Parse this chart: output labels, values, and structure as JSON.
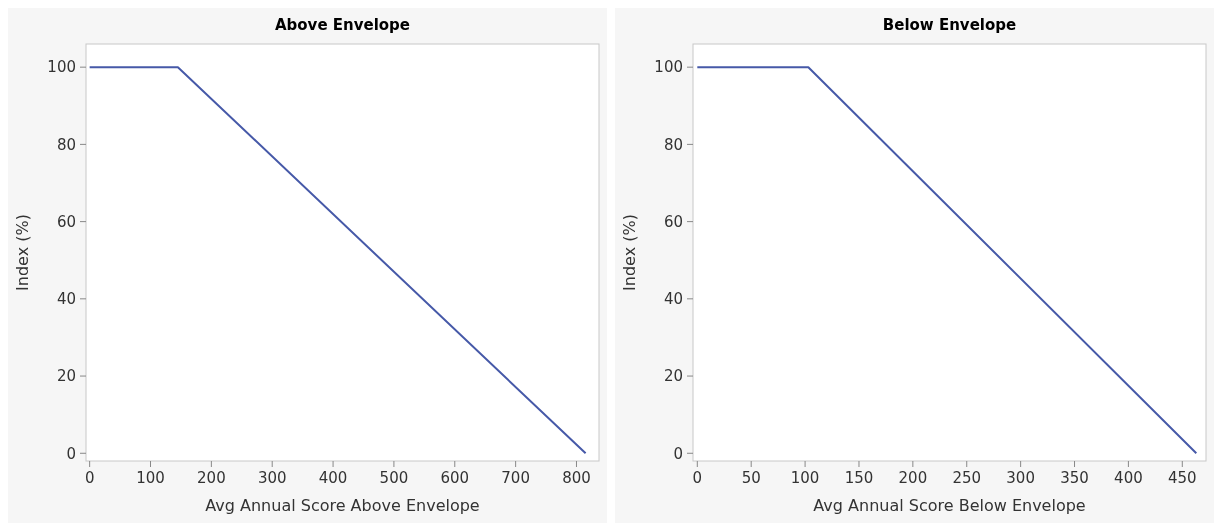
{
  "chart_data": [
    {
      "type": "line",
      "title": "Above Envelope",
      "xlabel": "Avg Annual Score Above Envelope",
      "ylabel": "Index (%)",
      "x": [
        0,
        145,
        815
      ],
      "series": [
        {
          "color": "#4659a8",
          "values": [
            100,
            100,
            0
          ]
        }
      ],
      "xlim": [
        -6,
        837
      ],
      "xticks": [
        0,
        100,
        200,
        300,
        400,
        500,
        600,
        700,
        800
      ],
      "ylim": [
        -2,
        106
      ],
      "yticks": [
        0,
        20,
        40,
        60,
        80,
        100
      ]
    },
    {
      "type": "line",
      "title": "Below Envelope",
      "xlabel": "Avg Annual Score Below Envelope",
      "ylabel": "Index (%)",
      "x": [
        0,
        103,
        463
      ],
      "series": [
        {
          "color": "#4659a8",
          "values": [
            100,
            100,
            0
          ]
        }
      ],
      "xlim": [
        -4,
        472
      ],
      "xticks": [
        0,
        50,
        100,
        150,
        200,
        250,
        300,
        350,
        400,
        450
      ],
      "ylim": [
        -2,
        106
      ],
      "yticks": [
        0,
        20,
        40,
        60,
        80,
        100
      ]
    }
  ]
}
